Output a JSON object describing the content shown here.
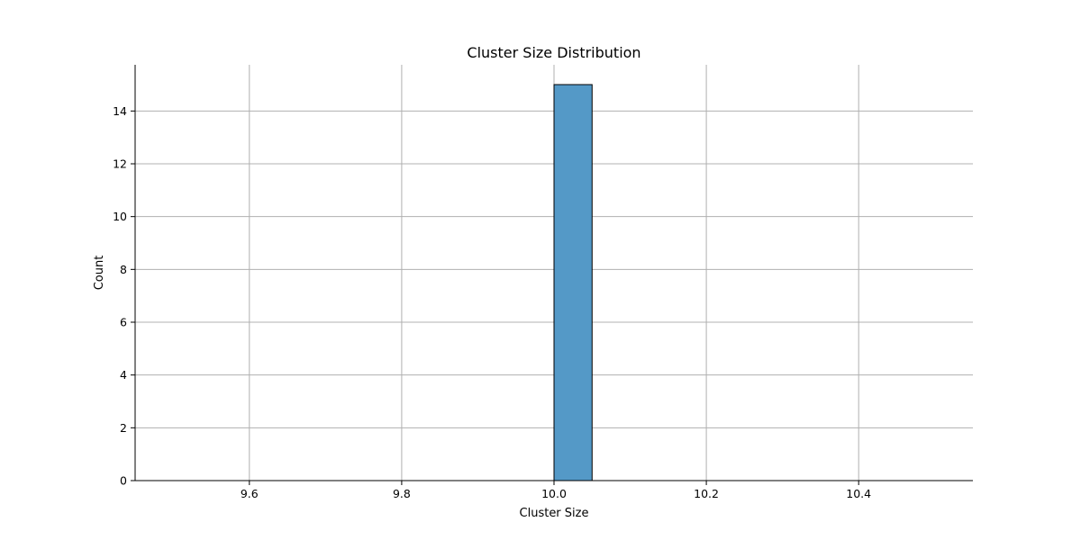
{
  "chart_data": {
    "type": "bar",
    "title": "Cluster Size Distribution",
    "xlabel": "Cluster Size",
    "ylabel": "Count",
    "xlim": [
      9.45,
      10.55
    ],
    "ylim": [
      0,
      15.75
    ],
    "xticks": [
      9.6,
      9.8,
      10.0,
      10.2,
      10.4
    ],
    "xtick_labels": [
      "9.6",
      "9.8",
      "10.0",
      "10.2",
      "10.4"
    ],
    "yticks": [
      0,
      2,
      4,
      6,
      8,
      10,
      12,
      14
    ],
    "ytick_labels": [
      "0",
      "2",
      "4",
      "6",
      "8",
      "10",
      "12",
      "14"
    ],
    "bins": [
      {
        "start": 9.5,
        "end": 9.55,
        "count": 0
      },
      {
        "start": 9.55,
        "end": 9.6,
        "count": 0
      },
      {
        "start": 9.6,
        "end": 9.65,
        "count": 0
      },
      {
        "start": 9.65,
        "end": 9.7,
        "count": 0
      },
      {
        "start": 9.7,
        "end": 9.75,
        "count": 0
      },
      {
        "start": 9.75,
        "end": 9.8,
        "count": 0
      },
      {
        "start": 9.8,
        "end": 9.85,
        "count": 0
      },
      {
        "start": 9.85,
        "end": 9.9,
        "count": 0
      },
      {
        "start": 9.9,
        "end": 9.95,
        "count": 0
      },
      {
        "start": 9.95,
        "end": 10.0,
        "count": 0
      },
      {
        "start": 10.0,
        "end": 10.05,
        "count": 15
      },
      {
        "start": 10.05,
        "end": 10.1,
        "count": 0
      },
      {
        "start": 10.1,
        "end": 10.15,
        "count": 0
      },
      {
        "start": 10.15,
        "end": 10.2,
        "count": 0
      },
      {
        "start": 10.2,
        "end": 10.25,
        "count": 0
      },
      {
        "start": 10.25,
        "end": 10.3,
        "count": 0
      },
      {
        "start": 10.3,
        "end": 10.35,
        "count": 0
      },
      {
        "start": 10.35,
        "end": 10.4,
        "count": 0
      },
      {
        "start": 10.4,
        "end": 10.45,
        "count": 0
      },
      {
        "start": 10.45,
        "end": 10.5,
        "count": 0
      }
    ],
    "grid": true,
    "bar_color": "#5499c7",
    "bar_edge_color": "#000000"
  }
}
